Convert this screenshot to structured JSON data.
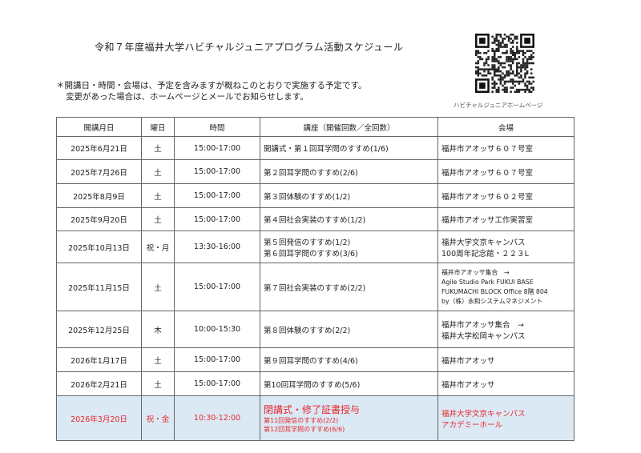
{
  "title": "令和７年度福井大学ハビチャルジュニアプログラム活動スケジュール",
  "notes": [
    "＊開講日・時間・会場は、予定を含みますが概ねこのとおりで実施する予定です。",
    "変更があった場合は、ホームページとメールでお知らせします。"
  ],
  "qr": {
    "caption": "ハビチャルジュニアホームページ",
    "icon": "qr-code"
  },
  "colors": {
    "highlight_bg": "#dbe9f5",
    "highlight_text": "#e8262a"
  },
  "table": {
    "headers": [
      "開講月日",
      "曜日",
      "時間",
      "講座（開催回数／全回数）",
      "会場"
    ],
    "rows": [
      {
        "date": "2025年6月21日",
        "day": "土",
        "time": "15:00-17:00",
        "course": [
          "開講式・第１回耳学問のすすめ(1/6)"
        ],
        "venue": [
          "福井市アオッサ６０７号室"
        ]
      },
      {
        "date": "2025年7月26日",
        "day": "土",
        "time": "15:00-17:00",
        "course": [
          "第２回耳学問のすすめ(2/6)"
        ],
        "venue": [
          "福井市アオッサ６０７号室"
        ]
      },
      {
        "date": "2025年8月9日",
        "day": "土",
        "time": "15:00-17:00",
        "course": [
          "第３回体験のすすめ(1/2)"
        ],
        "venue": [
          "福井市アオッサ６０２号室"
        ]
      },
      {
        "date": "2025年9月20日",
        "day": "土",
        "time": "15:00-17:00",
        "course": [
          "第４回社会実装のすすめ(1/2)"
        ],
        "venue": [
          "福井市アオッサ工作実習室"
        ]
      },
      {
        "date": "2025年10月13日",
        "day": "祝・月",
        "time": "13:30-16:00",
        "course": [
          "第５回発信のすすめ(1/2)",
          "第６回耳学問のすすめ(3/6)"
        ],
        "venue": [
          "福井大学文京キャンパス",
          "100周年記念館・２２３L"
        ]
      },
      {
        "date": "2025年11月15日",
        "day": "土",
        "time": "15:00-17:00",
        "course": [
          "第７回社会実装のすすめ(2/2)"
        ],
        "venue": [
          "福井市アオッサ集合　→",
          "Agile Studio Park FUKUI BASE",
          "FUKUMACHI BLOCK Office 8階 804",
          "by（株）永和システムマネジメント"
        ]
      },
      {
        "date": "2025年12月25日",
        "day": "木",
        "time": "10:00-15:30",
        "course": [
          "第８回体験のすすめ(2/2)"
        ],
        "venue": [
          "福井市アオッサ集合　→",
          "福井大学松岡キャンパス"
        ]
      },
      {
        "date": "2026年1月17日",
        "day": "土",
        "time": "15:00-17:00",
        "course": [
          "第９回耳学問のすすめ(4/6)"
        ],
        "venue": [
          "福井市アオッサ"
        ]
      },
      {
        "date": "2026年2月21日",
        "day": "土",
        "time": "15:00-17:00",
        "course": [
          "第10回耳学問のすすめ(5/6)"
        ],
        "venue": [
          "福井市アオッサ"
        ]
      },
      {
        "date": "2026年3月20日",
        "day": "祝・金",
        "time": "10:30-12:00",
        "course": [
          "閉講式・修了証書授与",
          "第11回発信のすすめ(2/2)",
          "第12回耳学問のすすめ(6/6)"
        ],
        "venue": [
          "福井大学文京キャンパス",
          "アカデミーホール"
        ],
        "highlight": true
      }
    ]
  }
}
